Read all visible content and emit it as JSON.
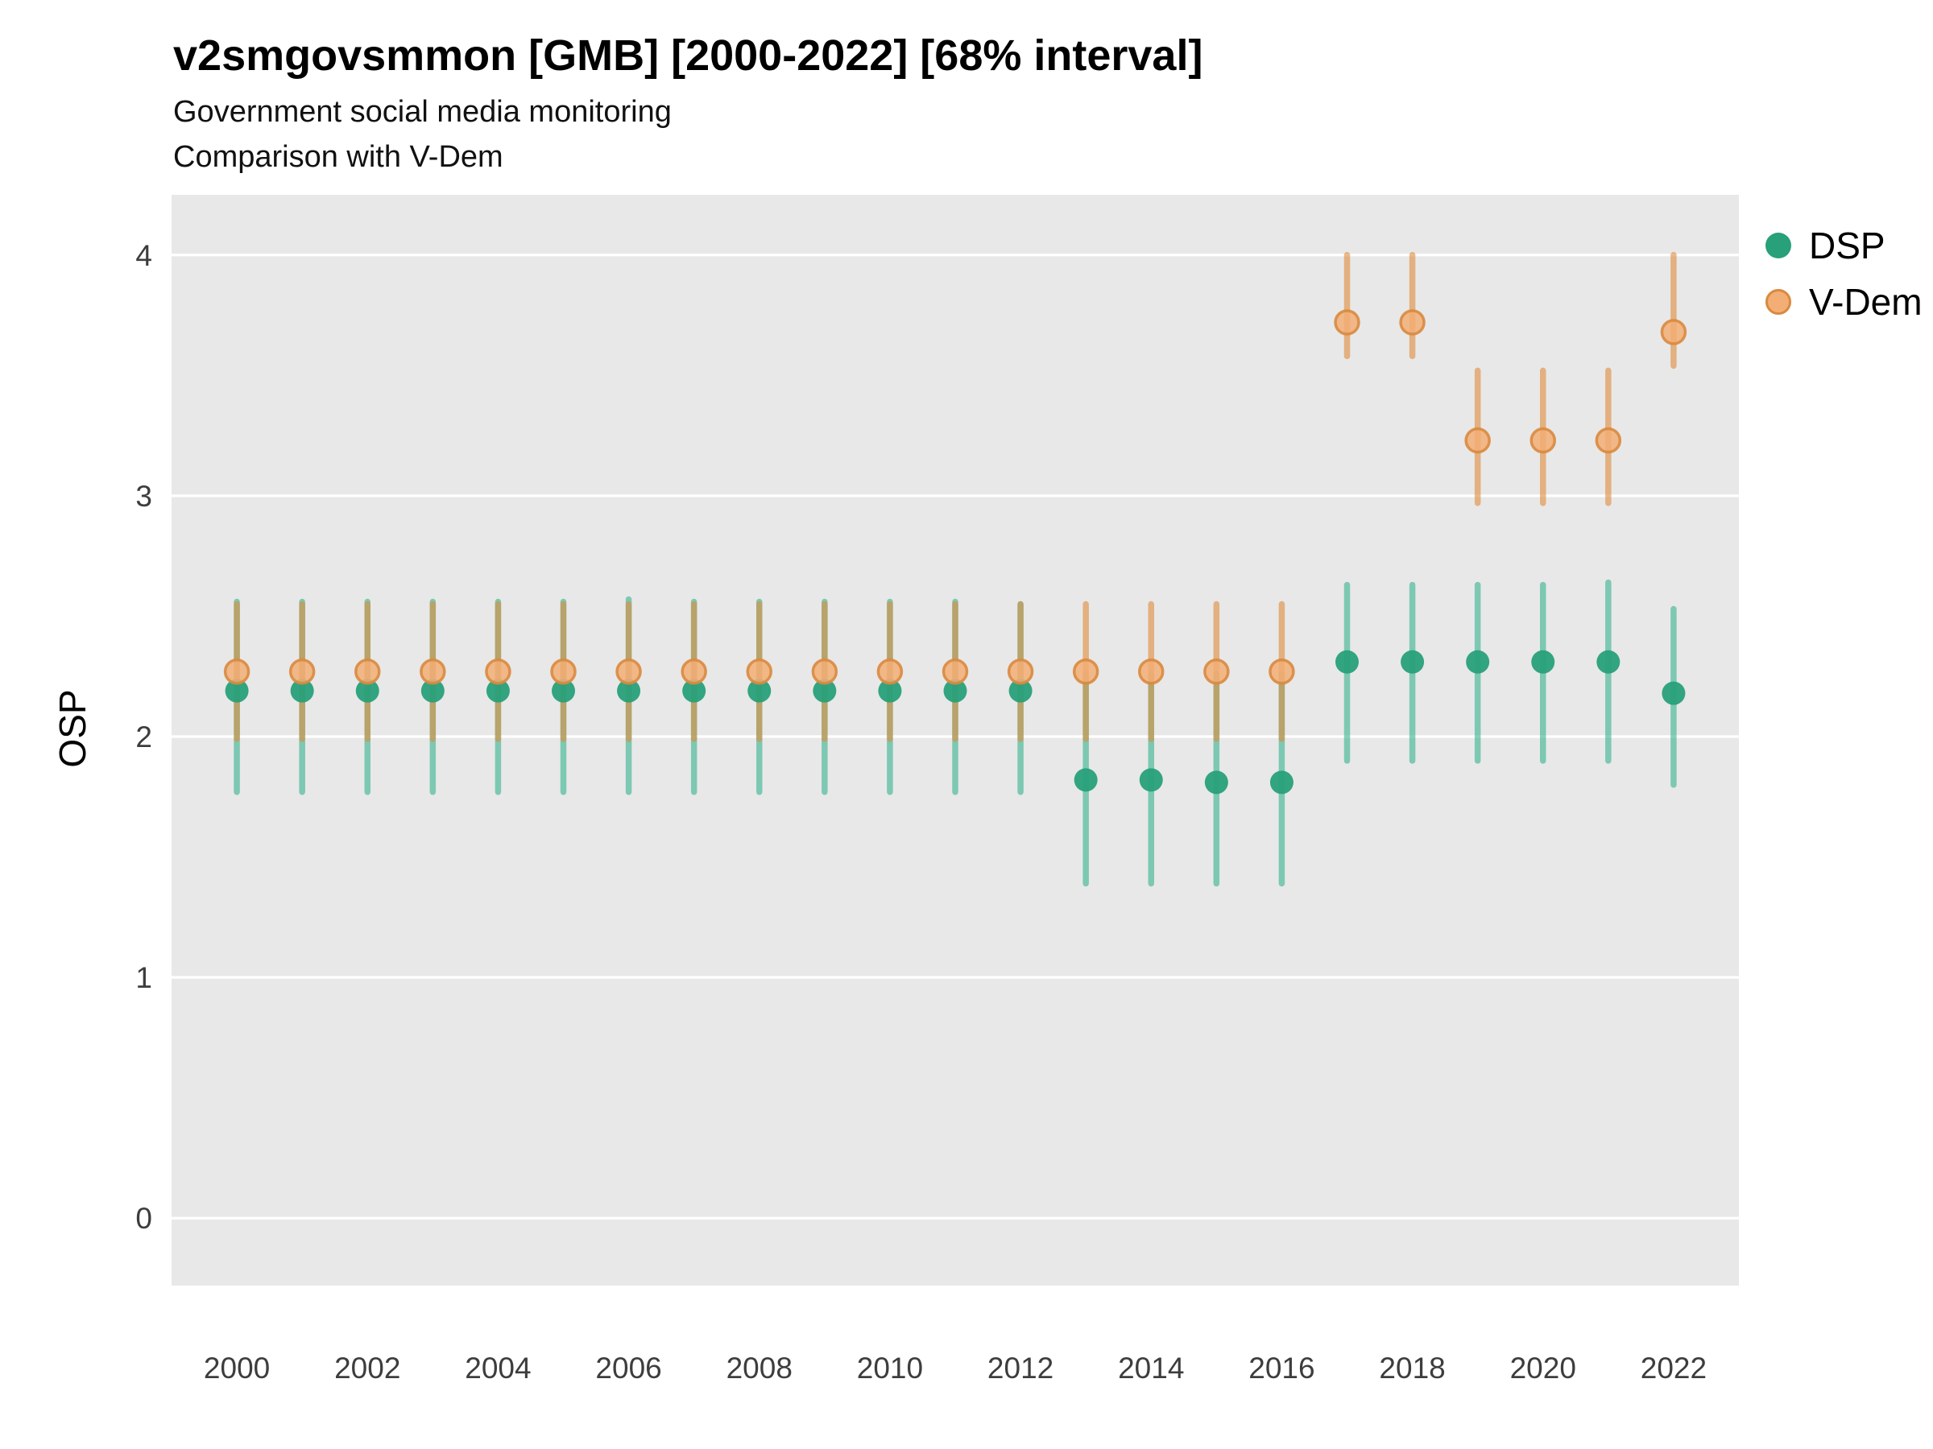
{
  "chart_data": {
    "type": "pointrange",
    "title": "v2smgovsmmon [GMB] [2000-2022] [68% interval]",
    "subtitle_line1": "Government social media monitoring",
    "subtitle_line2": "Comparison with V-Dem",
    "ylabel": "OSP",
    "interval_label": "68% interval",
    "xlim": [
      1999,
      2023
    ],
    "ylim": [
      -0.28,
      4.25
    ],
    "xticks": [
      2000,
      2002,
      2004,
      2006,
      2008,
      2010,
      2012,
      2014,
      2016,
      2018,
      2020,
      2022
    ],
    "yticks": [
      0,
      1,
      2,
      3,
      4
    ],
    "grid": "horizontal-major-only",
    "legend_position": "right",
    "years": [
      2000,
      2001,
      2002,
      2003,
      2004,
      2005,
      2006,
      2007,
      2008,
      2009,
      2010,
      2011,
      2012,
      2013,
      2014,
      2015,
      2016,
      2017,
      2018,
      2019,
      2020,
      2021,
      2022
    ],
    "style": {
      "panel_bg": "#e8e8e8",
      "grid_color": "#ffffff",
      "tick_label_color": "#3d3d3d"
    },
    "series": [
      {
        "name": "DSP",
        "point_fill": "#28a07a",
        "point_stroke": "none",
        "point_opacity": 0.95,
        "bar_color": "#35b28d",
        "bar_opacity": 0.6,
        "values": [
          2.19,
          2.19,
          2.19,
          2.19,
          2.19,
          2.19,
          2.19,
          2.19,
          2.19,
          2.19,
          2.19,
          2.19,
          2.19,
          1.82,
          1.82,
          1.81,
          1.81,
          2.31,
          2.31,
          2.31,
          2.31,
          2.31,
          2.18
        ],
        "lo": [
          1.77,
          1.77,
          1.77,
          1.77,
          1.77,
          1.77,
          1.77,
          1.77,
          1.77,
          1.77,
          1.77,
          1.77,
          1.77,
          1.39,
          1.39,
          1.39,
          1.39,
          1.9,
          1.9,
          1.9,
          1.9,
          1.9,
          1.8
        ],
        "hi": [
          2.56,
          2.56,
          2.56,
          2.56,
          2.56,
          2.56,
          2.57,
          2.56,
          2.56,
          2.56,
          2.56,
          2.56,
          2.55,
          2.26,
          2.26,
          2.26,
          2.26,
          2.63,
          2.63,
          2.63,
          2.63,
          2.64,
          2.53
        ]
      },
      {
        "name": "V-Dem",
        "point_fill": "#f2ae74",
        "point_stroke": "#d98a3f",
        "point_opacity": 0.85,
        "bar_color": "#e08a3a",
        "bar_opacity": 0.6,
        "values": [
          2.27,
          2.27,
          2.27,
          2.27,
          2.27,
          2.27,
          2.27,
          2.27,
          2.27,
          2.27,
          2.27,
          2.27,
          2.27,
          2.27,
          2.27,
          2.27,
          2.27,
          3.72,
          3.72,
          3.23,
          3.23,
          3.23,
          3.68
        ],
        "lo": [
          1.99,
          1.99,
          1.99,
          1.99,
          1.99,
          1.99,
          1.99,
          1.99,
          1.99,
          1.99,
          1.99,
          1.99,
          1.99,
          1.99,
          1.99,
          1.99,
          1.99,
          3.58,
          3.58,
          2.97,
          2.97,
          2.97,
          3.54
        ],
        "hi": [
          2.55,
          2.55,
          2.55,
          2.55,
          2.55,
          2.55,
          2.55,
          2.55,
          2.55,
          2.55,
          2.55,
          2.55,
          2.55,
          2.55,
          2.55,
          2.55,
          2.55,
          4.0,
          4.0,
          3.52,
          3.52,
          3.52,
          4.0
        ]
      }
    ]
  }
}
